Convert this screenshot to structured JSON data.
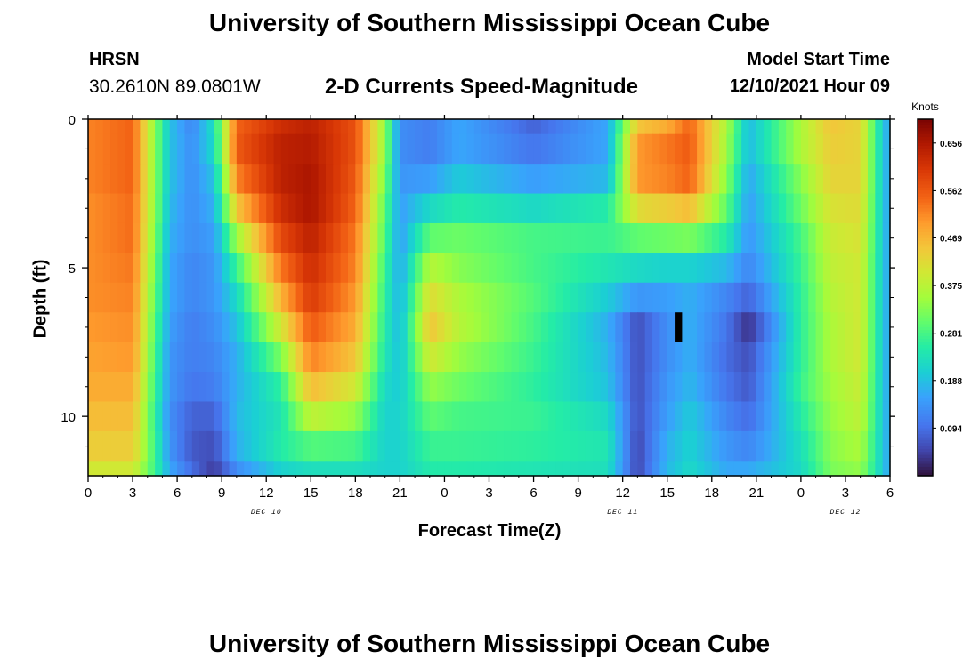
{
  "header": {
    "title": "University of Southern Mississippi Ocean Cube",
    "station": "HRSN",
    "coordinates": "30.2610N  89.0801W",
    "subtitle": "2-D Currents Speed-Magnitude",
    "model_start_label": "Model Start Time",
    "model_start_value": "12/10/2021 Hour 09"
  },
  "footer": {
    "title": "University of Southern Mississippi Ocean Cube"
  },
  "chart_data": {
    "type": "heatmap",
    "title": "2-D Currents Speed-Magnitude",
    "xlabel": "Forecast Time(Z)",
    "ylabel": "Depth (ft)",
    "x_range": [
      0,
      54
    ],
    "x_units": "hours since DEC 10 00Z",
    "y_range": [
      0,
      12
    ],
    "y_inverted": true,
    "x_ticks": [
      0,
      3,
      6,
      9,
      12,
      15,
      18,
      21,
      24,
      27,
      30,
      33,
      36,
      39,
      42,
      45,
      48,
      51,
      54
    ],
    "x_tick_labels": [
      "0",
      "3",
      "6",
      "9",
      "12",
      "15",
      "18",
      "21",
      "0",
      "3",
      "6",
      "9",
      "12",
      "15",
      "18",
      "21",
      "0",
      "3",
      "6"
    ],
    "y_ticks": [
      0,
      5,
      10
    ],
    "y_tick_labels": [
      "0",
      "5",
      "10"
    ],
    "date_labels": [
      {
        "text": "DEC 10",
        "hour": 12
      },
      {
        "text": "DEC 11",
        "hour": 36
      },
      {
        "text": "DEC 12",
        "hour": 51
      }
    ],
    "colorbar": {
      "label": "Knots",
      "min": 0.0,
      "max": 0.703,
      "ticks": [
        0.656,
        0.562,
        0.469,
        0.375,
        0.281,
        0.188,
        0.094
      ]
    },
    "depth_levels": [
      0,
      1,
      2,
      3,
      4,
      5,
      6,
      7,
      8,
      9,
      10,
      11,
      12
    ],
    "hour_knots": [
      0,
      3,
      4.5,
      5.5,
      7,
      8.5,
      10,
      13,
      15,
      18,
      20,
      21,
      23,
      25,
      30,
      35,
      37,
      39,
      40.5,
      43,
      44.5,
      48,
      50,
      52,
      53.5,
      54
    ],
    "knot_speeds": [
      [
        0.52,
        0.55,
        0.33,
        0.19,
        0.12,
        0.23,
        0.55,
        0.62,
        0.64,
        0.57,
        0.34,
        0.13,
        0.11,
        0.16,
        0.08,
        0.16,
        0.45,
        0.48,
        0.55,
        0.36,
        0.18,
        0.36,
        0.45,
        0.43,
        0.2,
        0.15
      ],
      [
        0.52,
        0.55,
        0.33,
        0.19,
        0.13,
        0.22,
        0.56,
        0.64,
        0.65,
        0.57,
        0.34,
        0.13,
        0.11,
        0.16,
        0.1,
        0.16,
        0.5,
        0.53,
        0.56,
        0.35,
        0.18,
        0.36,
        0.44,
        0.43,
        0.2,
        0.15
      ],
      [
        0.52,
        0.55,
        0.33,
        0.19,
        0.13,
        0.19,
        0.52,
        0.64,
        0.66,
        0.56,
        0.32,
        0.14,
        0.15,
        0.2,
        0.15,
        0.18,
        0.5,
        0.52,
        0.55,
        0.33,
        0.16,
        0.33,
        0.43,
        0.43,
        0.2,
        0.15
      ],
      [
        0.51,
        0.54,
        0.33,
        0.18,
        0.13,
        0.17,
        0.45,
        0.62,
        0.66,
        0.55,
        0.3,
        0.15,
        0.22,
        0.25,
        0.22,
        0.25,
        0.42,
        0.44,
        0.46,
        0.3,
        0.15,
        0.31,
        0.41,
        0.42,
        0.2,
        0.15
      ],
      [
        0.51,
        0.54,
        0.32,
        0.17,
        0.13,
        0.15,
        0.35,
        0.58,
        0.64,
        0.53,
        0.29,
        0.15,
        0.3,
        0.31,
        0.28,
        0.27,
        0.3,
        0.31,
        0.32,
        0.25,
        0.14,
        0.28,
        0.39,
        0.41,
        0.2,
        0.15
      ],
      [
        0.51,
        0.53,
        0.31,
        0.16,
        0.12,
        0.14,
        0.27,
        0.53,
        0.62,
        0.52,
        0.27,
        0.16,
        0.37,
        0.33,
        0.28,
        0.24,
        0.22,
        0.21,
        0.21,
        0.18,
        0.12,
        0.27,
        0.38,
        0.4,
        0.2,
        0.15
      ],
      [
        0.51,
        0.52,
        0.3,
        0.16,
        0.12,
        0.14,
        0.22,
        0.47,
        0.6,
        0.5,
        0.26,
        0.17,
        0.42,
        0.36,
        0.29,
        0.2,
        0.14,
        0.15,
        0.17,
        0.12,
        0.08,
        0.26,
        0.37,
        0.4,
        0.2,
        0.15
      ],
      [
        0.5,
        0.51,
        0.29,
        0.15,
        0.11,
        0.13,
        0.19,
        0.4,
        0.56,
        0.48,
        0.25,
        0.18,
        0.45,
        0.37,
        0.28,
        0.17,
        0.06,
        0.13,
        0.17,
        0.1,
        0.03,
        0.26,
        0.36,
        0.4,
        0.2,
        0.15
      ],
      [
        0.49,
        0.5,
        0.28,
        0.14,
        0.11,
        0.12,
        0.17,
        0.32,
        0.52,
        0.45,
        0.24,
        0.19,
        0.4,
        0.34,
        0.27,
        0.18,
        0.06,
        0.13,
        0.17,
        0.09,
        0.06,
        0.26,
        0.36,
        0.4,
        0.2,
        0.15
      ],
      [
        0.48,
        0.48,
        0.27,
        0.14,
        0.1,
        0.11,
        0.17,
        0.26,
        0.46,
        0.4,
        0.22,
        0.2,
        0.34,
        0.31,
        0.26,
        0.19,
        0.06,
        0.14,
        0.18,
        0.1,
        0.07,
        0.27,
        0.35,
        0.39,
        0.2,
        0.15
      ],
      [
        0.46,
        0.46,
        0.26,
        0.13,
        0.08,
        0.08,
        0.18,
        0.24,
        0.38,
        0.34,
        0.21,
        0.21,
        0.3,
        0.28,
        0.27,
        0.22,
        0.06,
        0.15,
        0.2,
        0.12,
        0.09,
        0.25,
        0.34,
        0.38,
        0.2,
        0.15
      ],
      [
        0.44,
        0.44,
        0.27,
        0.14,
        0.07,
        0.06,
        0.17,
        0.25,
        0.29,
        0.28,
        0.21,
        0.21,
        0.27,
        0.27,
        0.26,
        0.24,
        0.05,
        0.17,
        0.21,
        0.14,
        0.12,
        0.23,
        0.33,
        0.36,
        0.2,
        0.15
      ],
      [
        0.4,
        0.4,
        0.27,
        0.16,
        0.09,
        0.04,
        0.13,
        0.21,
        0.23,
        0.23,
        0.21,
        0.21,
        0.25,
        0.25,
        0.24,
        0.23,
        0.05,
        0.18,
        0.22,
        0.16,
        0.16,
        0.22,
        0.32,
        0.34,
        0.2,
        0.15
      ]
    ],
    "mask": {
      "hour_start": 39.5,
      "hour_end": 40,
      "depth_start": 6.5,
      "depth_end": 7.5
    }
  }
}
